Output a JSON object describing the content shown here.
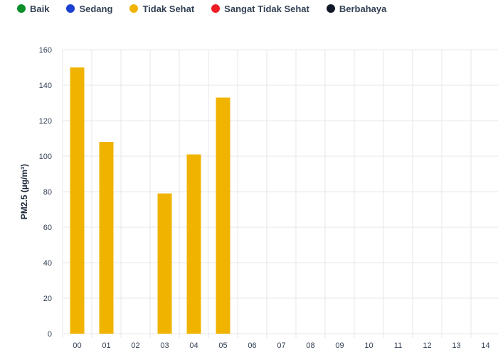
{
  "legend": [
    {
      "label": "Baik",
      "color": "#0a8f2b"
    },
    {
      "label": "Sedang",
      "color": "#1a3fd1"
    },
    {
      "label": "Tidak Sehat",
      "color": "#f0b400"
    },
    {
      "label": "Sangat Tidak Sehat",
      "color": "#ef1c24"
    },
    {
      "label": "Berbahaya",
      "color": "#111827"
    }
  ],
  "chart_data": {
    "type": "bar",
    "ylabel": "PM2.5 (µg/m³)",
    "xlabel": "",
    "ylim": [
      0,
      160
    ],
    "yticks": [
      0,
      20,
      40,
      60,
      80,
      100,
      120,
      140,
      160
    ],
    "categories": [
      "00",
      "01",
      "02",
      "03",
      "04",
      "05",
      "06",
      "07",
      "08",
      "09",
      "10",
      "11",
      "12",
      "13",
      "14"
    ],
    "values": [
      150,
      108,
      null,
      79,
      101,
      133,
      null,
      null,
      null,
      null,
      null,
      null,
      null,
      null,
      null
    ],
    "bar_color": "#f0b400",
    "grid": true
  }
}
